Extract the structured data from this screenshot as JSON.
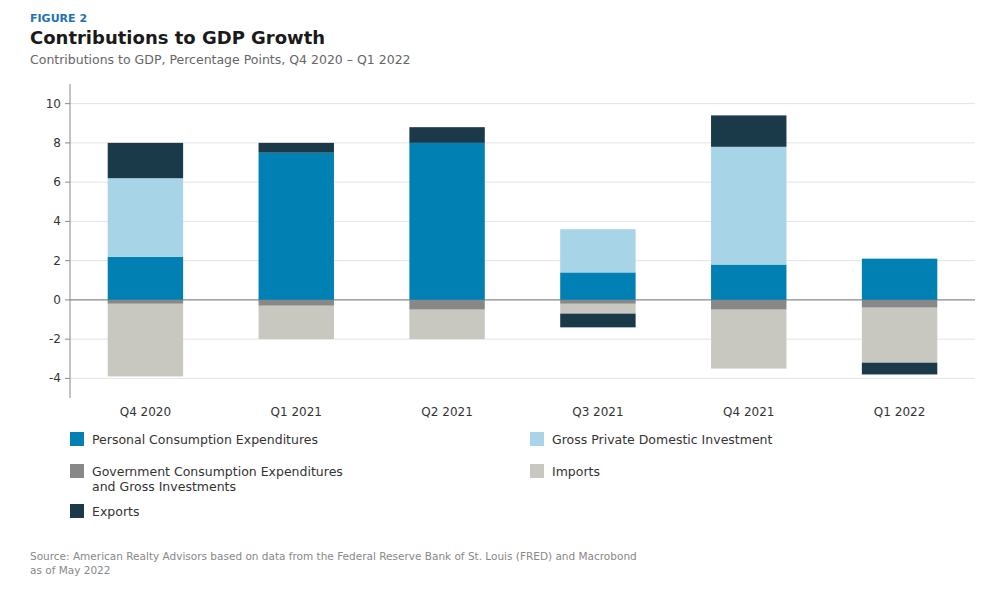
{
  "chart_data": {
    "type": "bar",
    "stacked": true,
    "title": "Contributions to GDP Growth",
    "subtitle": "Contributions to GDP, Percentage Points, Q4 2020 – Q1 2022",
    "annotations": [
      "FIGURE 2",
      "Source: American Realty Advisors based on data from the Federal Reserve Bank of St. Louis (FRED) and Macrobond\nas of May 2022"
    ],
    "categories": [
      "Q4 2020",
      "Q1 2021",
      "Q2 2021",
      "Q3 2021",
      "Q4 2021",
      "Q1 2022"
    ],
    "series": [
      {
        "name": "Personal Consumption Expenditures",
        "color": "#0080b3",
        "values": [
          2.2,
          7.5,
          8.0,
          1.4,
          1.8,
          2.1
        ]
      },
      {
        "name": "Gross Private Domestic Investment",
        "color": "#a8d4e8",
        "values": [
          4.0,
          0.0,
          0.0,
          2.2,
          6.0,
          0.0
        ]
      },
      {
        "name": "Government Consumption Expenditures\nand Gross Investments",
        "color": "#888888",
        "values": [
          -0.2,
          -0.3,
          -0.5,
          -0.2,
          -0.5,
          -0.4
        ]
      },
      {
        "name": "Imports",
        "color": "#c8c8c0",
        "values": [
          -3.7,
          -1.7,
          -1.5,
          -0.5,
          -3.0,
          -2.8
        ]
      },
      {
        "name": "Exports",
        "color": "#1a3a4a",
        "values": [
          1.8,
          0.5,
          0.8,
          -0.7,
          1.6,
          -0.6
        ]
      }
    ],
    "ylim": [
      -5,
      11
    ],
    "yticks": [
      -4,
      -2,
      0,
      2,
      4,
      6,
      8,
      10
    ],
    "grid": true,
    "legend": "bottom"
  }
}
